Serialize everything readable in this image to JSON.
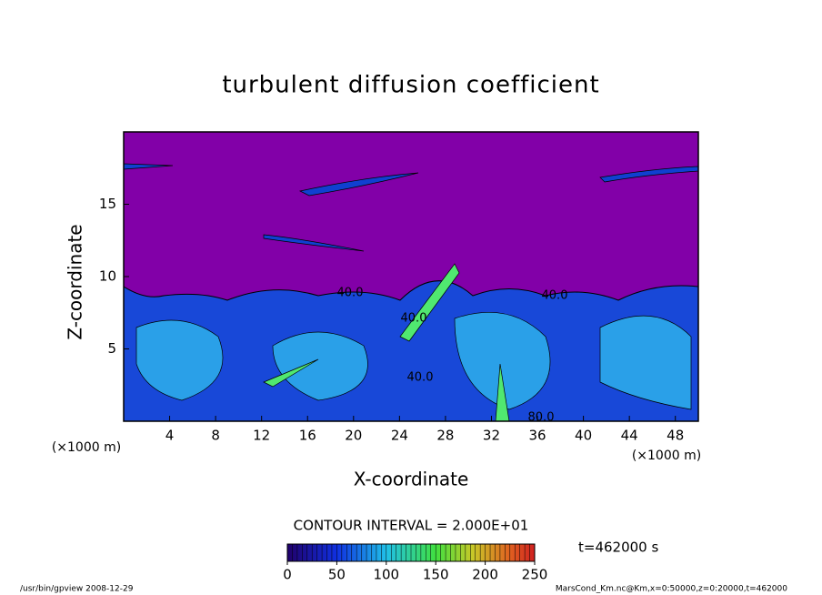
{
  "chart_data": {
    "type": "contour",
    "title": "turbulent diffusion coefficient",
    "x_label": "X-coordinate",
    "y_label": "Z-coordinate",
    "x_unit": "(×1000 m)",
    "y_unit": "(×1000 m)",
    "xlim": [
      0,
      50
    ],
    "xticks": [
      4,
      8,
      12,
      16,
      20,
      24,
      28,
      32,
      36,
      40,
      44,
      48
    ],
    "ylim": [
      0,
      20
    ],
    "yticks": [
      5,
      10,
      15
    ],
    "background_color": "#8200a8",
    "contour_labels": [
      "40.0",
      "40.0",
      "40.0",
      "40.0",
      "80.0"
    ],
    "contour_interval": "CONTOUR INTERVAL = 2.000E+01",
    "time": "t=462000 s",
    "colorbar": {
      "lim": [
        0,
        250
      ],
      "ticks": [
        0,
        50,
        100,
        150,
        200,
        250
      ]
    },
    "footer_left": "/usr/bin/gpview   2008-12-29",
    "footer_right": "MarsCond_Km.nc@Km,x=0:50000,z=0:20000,t=462000"
  }
}
